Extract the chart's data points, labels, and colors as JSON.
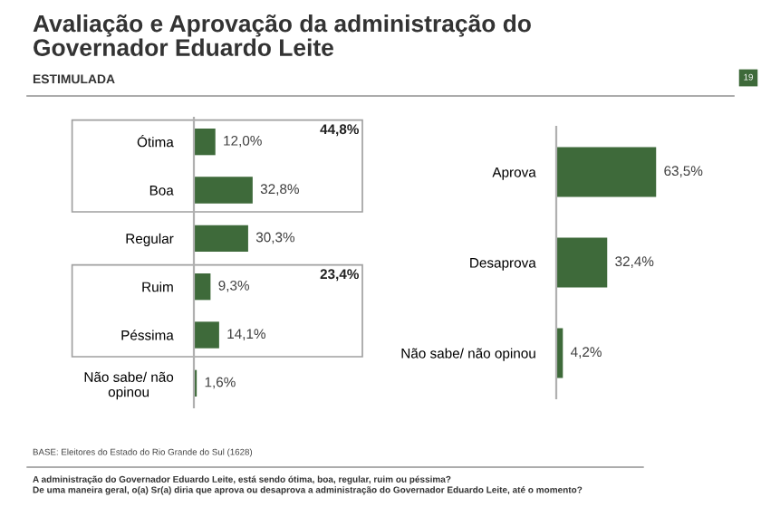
{
  "chart_data": [
    {
      "type": "bar",
      "orientation": "horizontal",
      "title": "Avaliação e Aprovação da administração do\nGovernador Eduardo Leite",
      "subtitle": "ESTIMULADA",
      "categories": [
        "Ótima",
        "Boa",
        "Regular",
        "Ruim",
        "Péssima",
        "Não sabe/ não\nopinou"
      ],
      "values": [
        12.0,
        32.8,
        30.3,
        9.3,
        14.1,
        1.6
      ],
      "color": "#3e6a3a",
      "value_labels": [
        "12,0%",
        "32,8%",
        "30,3%",
        "9,3%",
        "14,1%",
        "1,6%"
      ],
      "annotations": [
        "44,8%",
        "23,4%",
        "BASE: Eleitores do Estado do Rio Grande do Sul (1628)",
        "A administração do Governador Eduardo Leite, está sendo ótima, boa, regular, ruim ou péssima?\nDe uma maneira geral, o(a) Sr(a) diria que aprova ou desaprova a administração do Governador Eduardo Leite, até o momento?"
      ],
      "grid": false,
      "legend": false
    },
    {
      "type": "bar",
      "orientation": "horizontal",
      "categories": [
        "Aprova",
        "Desaprova",
        "Não sabe/ não opinou"
      ],
      "values": [
        63.5,
        32.4,
        4.2
      ],
      "color": "#3e6a3a",
      "value_labels": [
        "63,5%",
        "32,4%",
        "4,2%"
      ],
      "annotations": [
        "19"
      ],
      "grid": false,
      "legend": false
    }
  ]
}
